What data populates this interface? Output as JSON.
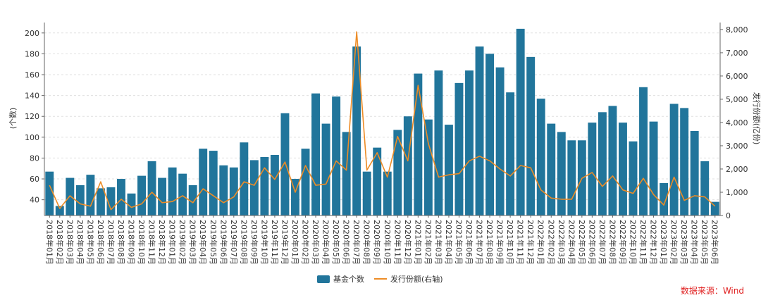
{
  "colors": {
    "bar": "#21759b",
    "line": "#ed8c26",
    "grid": "#e0e0e0",
    "source": "#e02020"
  },
  "legend": {
    "bar_label": "基金个数",
    "line_label": "发行份额(右轴)"
  },
  "source": "数据来源：Wind",
  "chart_data": {
    "type": "bar",
    "categories": [
      "2018年01月",
      "2018年02月",
      "2018年03月",
      "2018年04月",
      "2018年05月",
      "2018年06月",
      "2018年07月",
      "2018年08月",
      "2018年09月",
      "2018年10月",
      "2018年11月",
      "2018年12月",
      "2019年01月",
      "2019年02月",
      "2019年03月",
      "2019年04月",
      "2019年05月",
      "2019年06月",
      "2019年07月",
      "2019年08月",
      "2019年09月",
      "2019年10月",
      "2019年11月",
      "2019年12月",
      "2020年01月",
      "2020年02月",
      "2020年03月",
      "2020年04月",
      "2020年05月",
      "2020年06月",
      "2020年07月",
      "2020年08月",
      "2020年09月",
      "2020年10月",
      "2020年11月",
      "2020年12月",
      "2021年01月",
      "2021年02月",
      "2021年03月",
      "2021年04月",
      "2021年05月",
      "2021年06月",
      "2021年07月",
      "2021年08月",
      "2021年09月",
      "2021年10月",
      "2021年11月",
      "2021年12月",
      "2022年01月",
      "2022年02月",
      "2022年03月",
      "2022年04月",
      "2022年05月",
      "2022年06月",
      "2022年07月",
      "2022年08月",
      "2022年09月",
      "2022年10月",
      "2022年11月",
      "2022年12月",
      "2023年01月",
      "2023年02月",
      "2023年03月",
      "2023年04月",
      "2023年05月",
      "2023年06月"
    ],
    "series": [
      {
        "name": "基金个数",
        "type": "bar",
        "axis": "left",
        "values": [
          67,
          34,
          61,
          54,
          64,
          51,
          52,
          60,
          46,
          63,
          77,
          61,
          71,
          65,
          54,
          89,
          87,
          73,
          71,
          95,
          78,
          81,
          83,
          123,
          60,
          89,
          142,
          113,
          139,
          105,
          187,
          67,
          90,
          67,
          107,
          120,
          161,
          117,
          164,
          112,
          152,
          164,
          187,
          180,
          167,
          143,
          204,
          177,
          137,
          113,
          105,
          97,
          97,
          114,
          124,
          130,
          114,
          96,
          148,
          115,
          56,
          132,
          128,
          106,
          77,
          38
        ]
      },
      {
        "name": "发行份额(右轴)",
        "type": "line",
        "axis": "right",
        "values": [
          1300,
          300,
          850,
          500,
          400,
          1450,
          250,
          700,
          350,
          500,
          1000,
          550,
          600,
          850,
          550,
          1150,
          850,
          550,
          800,
          1450,
          1300,
          2050,
          1550,
          2300,
          1000,
          2150,
          1300,
          1350,
          2350,
          1950,
          7900,
          1950,
          2700,
          1650,
          3400,
          2350,
          5600,
          3100,
          1650,
          1750,
          1800,
          2350,
          2550,
          2350,
          2000,
          1700,
          2150,
          2050,
          1100,
          750,
          700,
          700,
          1600,
          1850,
          1250,
          1700,
          1100,
          950,
          1600,
          900,
          450,
          1650,
          650,
          850,
          800,
          400
        ]
      }
    ],
    "ylabel": "(个数)",
    "y2label": "发行份额(亿份)",
    "ylim": [
      24.9,
      210
    ],
    "y2lim": [
      0,
      8300
    ],
    "yticks": [
      40,
      60,
      80,
      100,
      120,
      140,
      160,
      180,
      200
    ],
    "y2ticks": [
      0,
      1000,
      2000,
      3000,
      4000,
      5000,
      6000,
      7000,
      8000
    ],
    "y2tick_labels": [
      "0",
      "1,000",
      "2,000",
      "3,000",
      "4,000",
      "5,000",
      "6,000",
      "7,000",
      "8,000"
    ],
    "legend_position": "bottom-center"
  }
}
